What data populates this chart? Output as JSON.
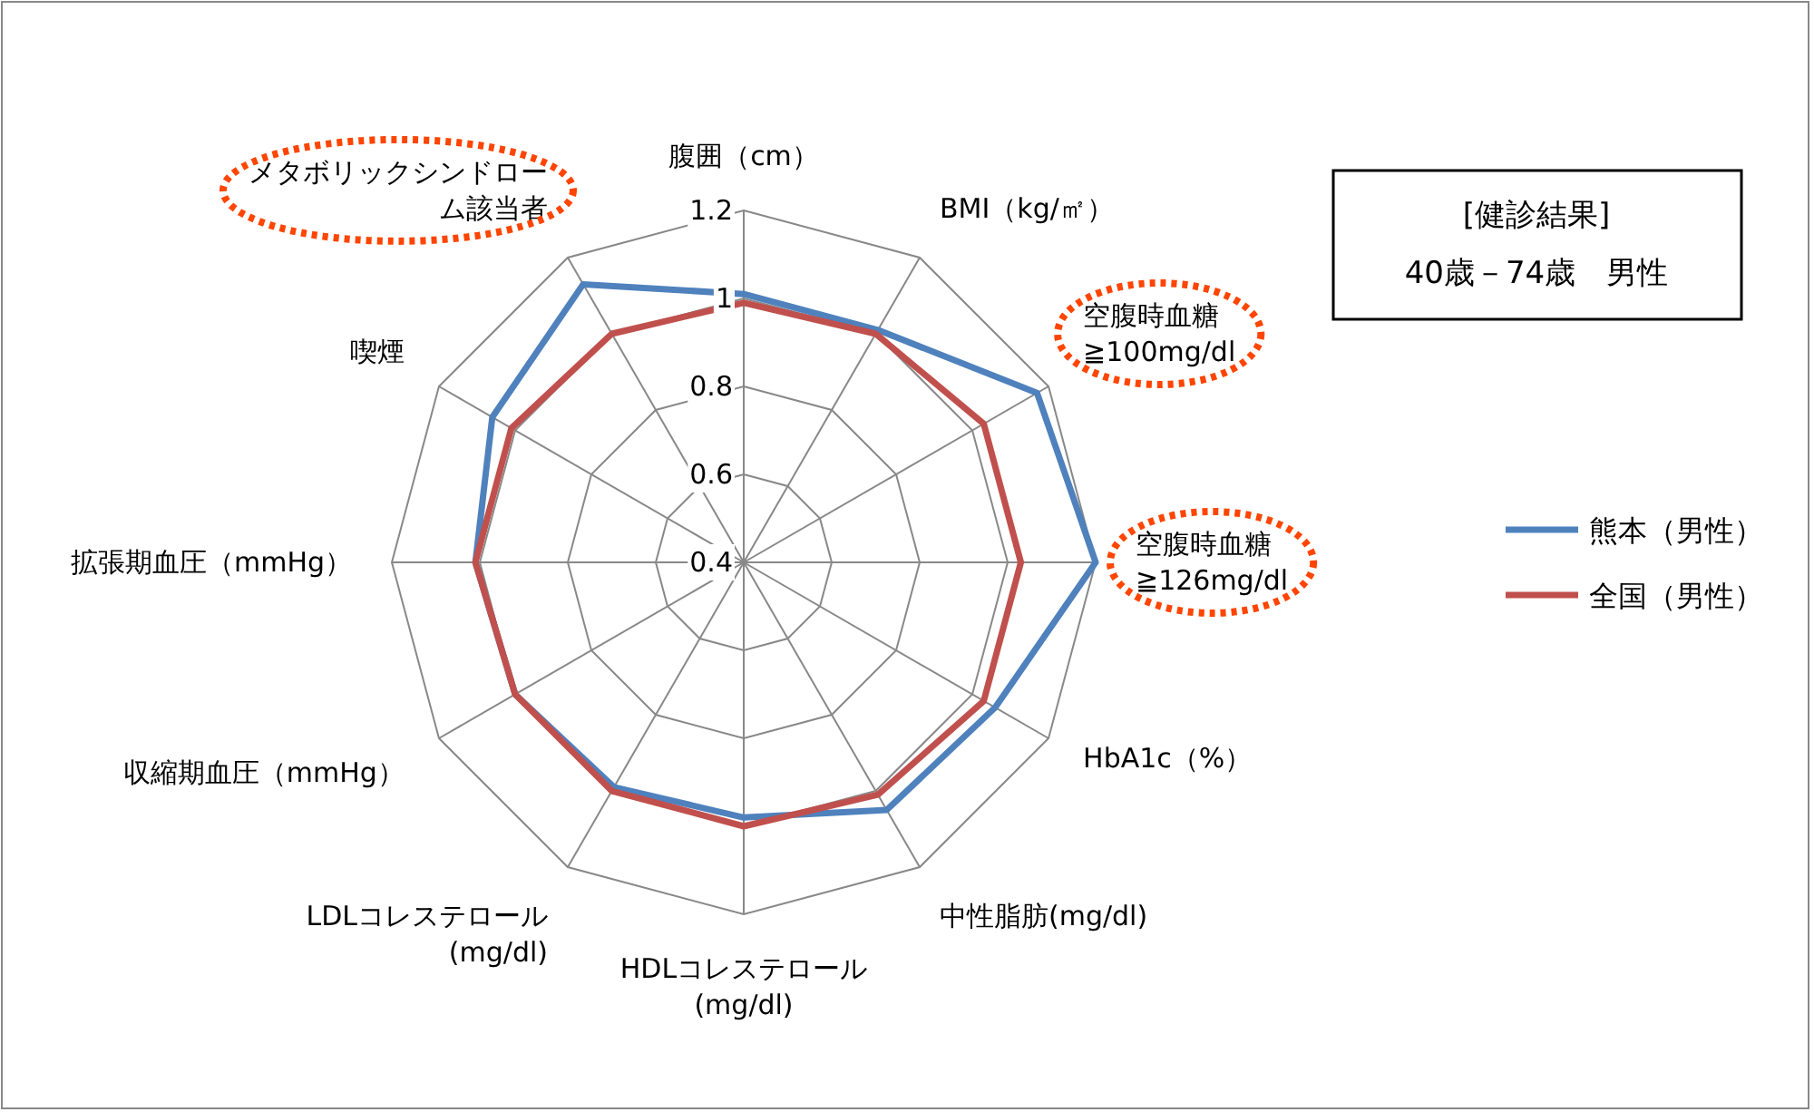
{
  "chart_data": {
    "type": "radar",
    "title": "[健診結果]",
    "subtitle": "40歳－74歳　男性",
    "categories": [
      "腹囲（cm）",
      "BMI（kg/㎡）",
      "空腹時血糖\n≧100mg/dl",
      "空腹時血糖\n≧126mg/dl",
      "HbA1c（%）",
      "中性脂肪(mg/dl)",
      "HDLコレステロール\n(mg/dl)",
      "LDLコレステロール\n(mg/dl)",
      "収縮期血圧（mmHg）",
      "拡張期血圧（mmHg）",
      "喫煙",
      "メタボリックシンドローム該当者"
    ],
    "series": [
      {
        "name": "熊本（男性）",
        "color": "#4f81bd",
        "values": [
          1.01,
          1.01,
          1.17,
          1.2,
          1.06,
          1.05,
          0.98,
          0.99,
          1.0,
          1.01,
          1.06,
          1.13
        ]
      },
      {
        "name": "全国（男性）",
        "color": "#c0504d",
        "values": [
          0.99,
          1.0,
          1.03,
          1.03,
          1.03,
          1.01,
          1.0,
          1.0,
          1.0,
          1.01,
          1.01,
          1.0
        ]
      }
    ],
    "ylim": [
      0.4,
      1.2
    ],
    "yticks": [
      0.4,
      0.6,
      0.8,
      1,
      1.2
    ],
    "grid": true,
    "legend": "right"
  }
}
